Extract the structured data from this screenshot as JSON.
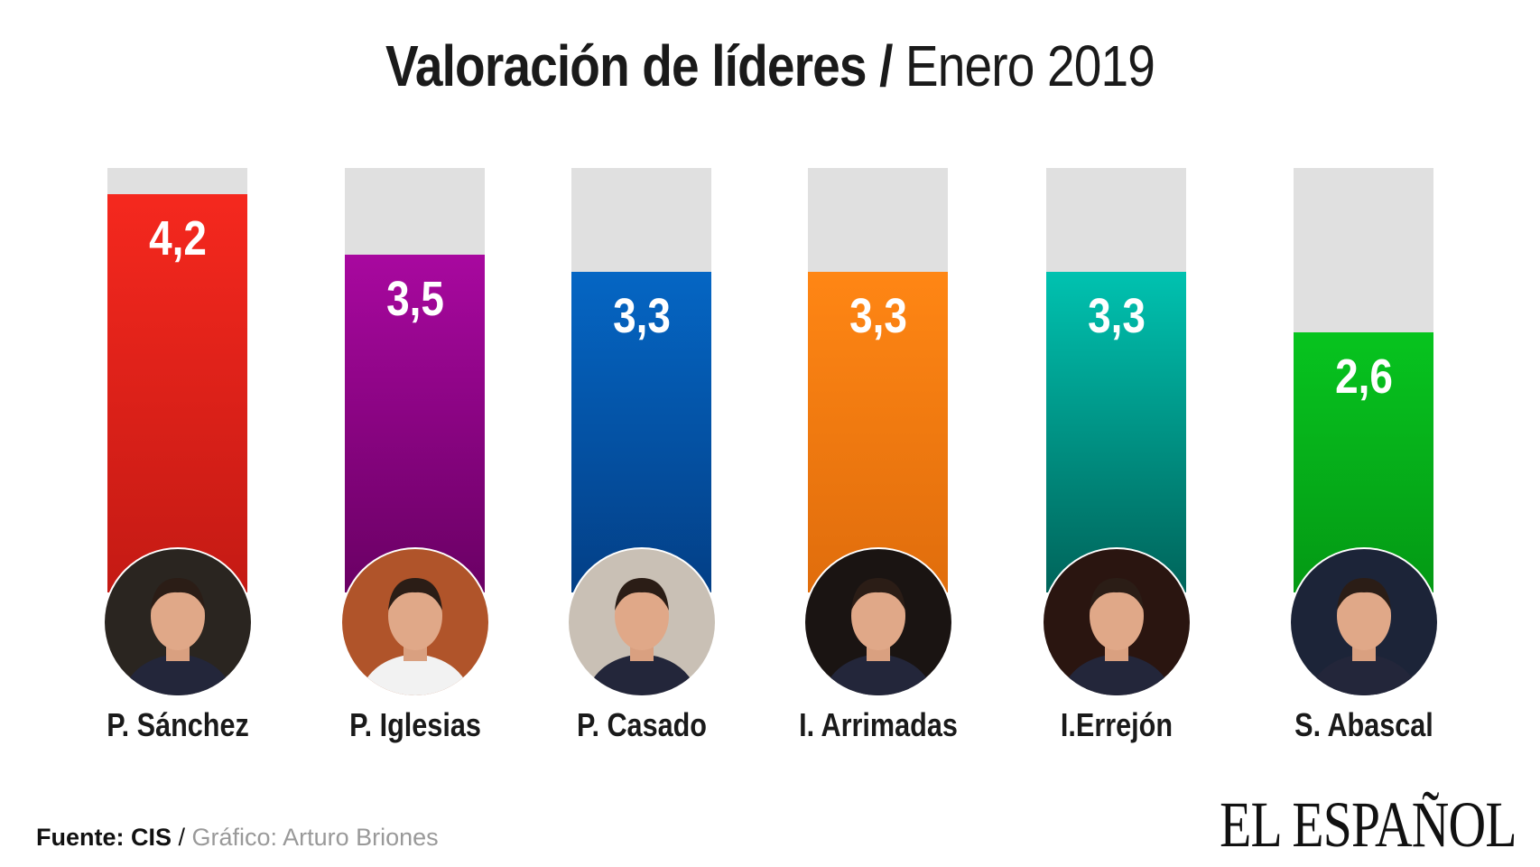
{
  "title": {
    "bold": "Valoración de líderes",
    "sep": "/",
    "light": "Enero 2019"
  },
  "chart_data": {
    "type": "bar",
    "title": "Valoración de líderes / Enero 2019",
    "categories": [
      "P. Sánchez",
      "P. Iglesias",
      "P. Casado",
      "I. Arrimadas",
      "I.Errejón",
      "S. Abascal"
    ],
    "values": [
      4.2,
      3.5,
      3.3,
      3.3,
      3.3,
      2.6
    ],
    "value_labels": [
      "4,2",
      "3,5",
      "3,3",
      "3,3",
      "3,3",
      "2,6"
    ],
    "colors": [
      [
        "#f5281e",
        "#c41a14"
      ],
      [
        "#a8089f",
        "#6a0064"
      ],
      [
        "#0566c4",
        "#033f86"
      ],
      [
        "#ff8614",
        "#e06d0c"
      ],
      [
        "#00c2b0",
        "#00645a"
      ],
      [
        "#07c41f",
        "#049914"
      ]
    ],
    "track_color": "#e0e0e0",
    "ylim": [
      0,
      4.5
    ],
    "grid": false
  },
  "footer": {
    "source": "Fuente: CIS",
    "sep": " / ",
    "credit": "Gráfico: Arturo Briones"
  },
  "logo": "EL ESPAÑOL"
}
